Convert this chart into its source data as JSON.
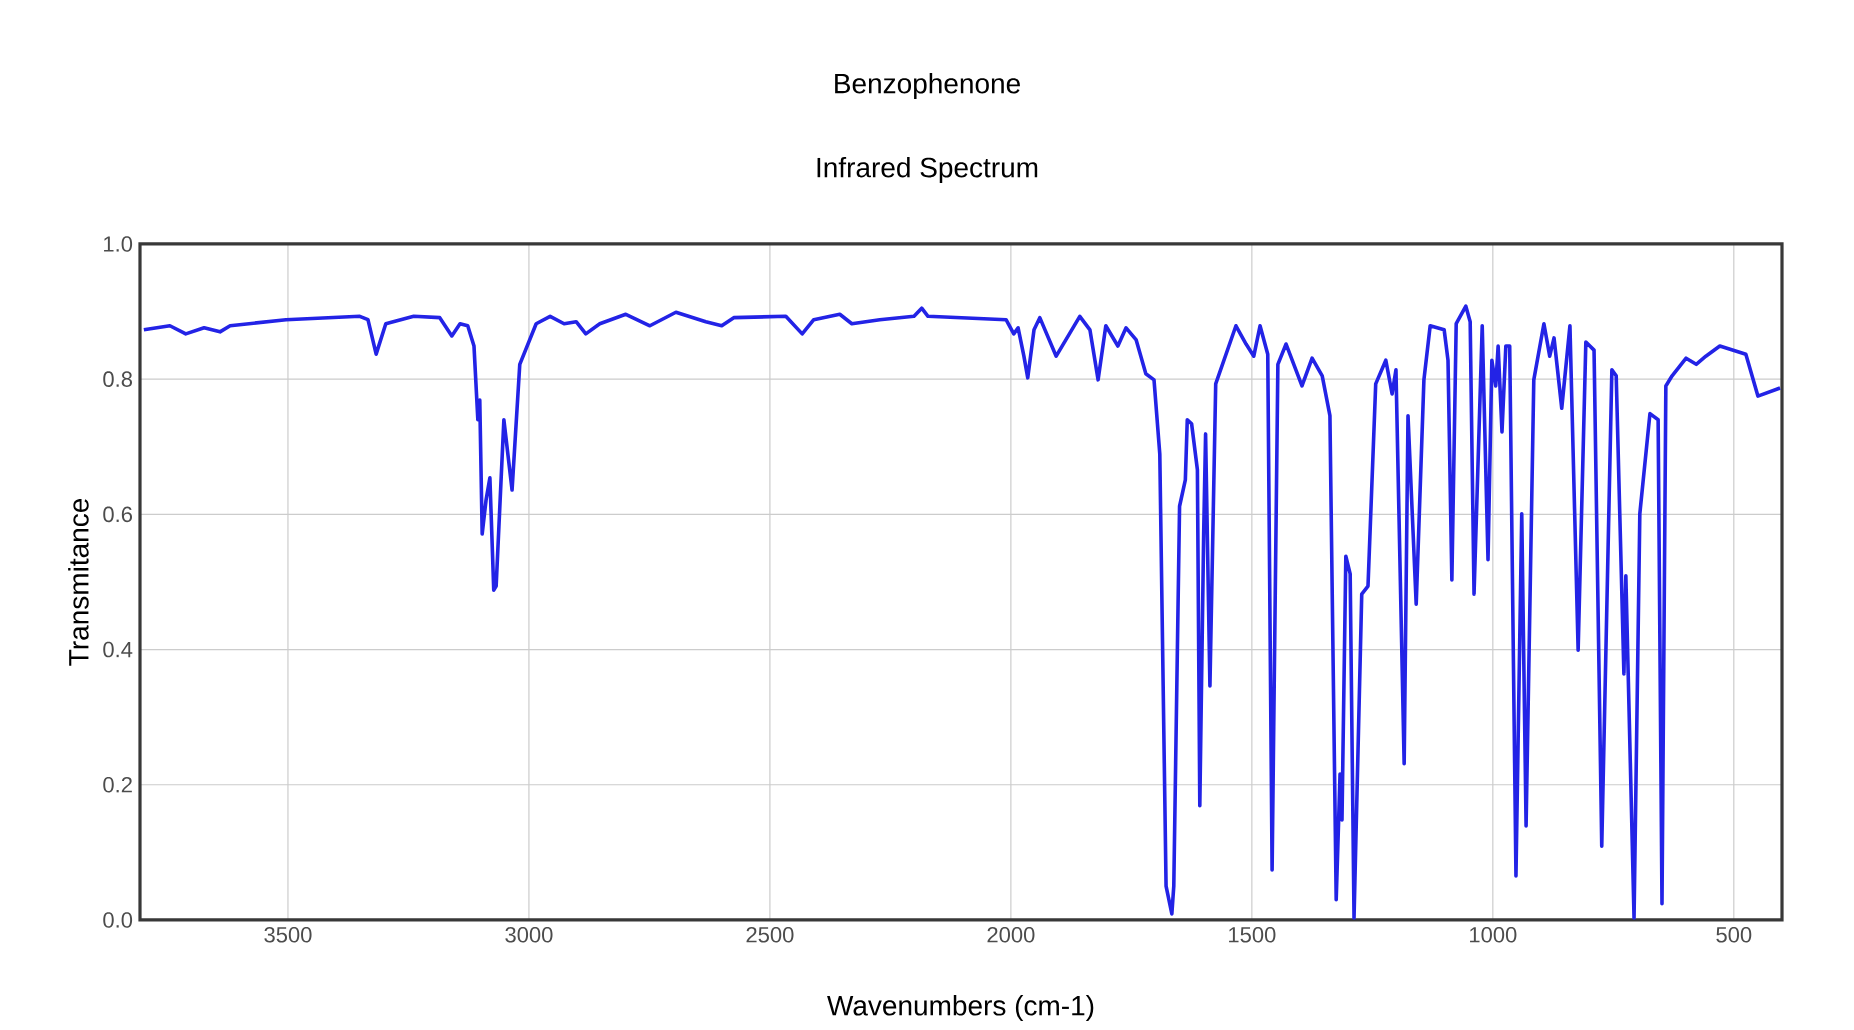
{
  "chart_data": {
    "type": "line",
    "title": "Benzophenone",
    "subtitle": "Infrared Spectrum",
    "xlabel": "Wavenumbers (cm-1)",
    "ylabel": "Transmitance",
    "xlim": [
      3807,
      400
    ],
    "ylim": [
      0,
      1
    ],
    "xticks": [
      3500,
      3000,
      2500,
      2000,
      1500,
      1000,
      500
    ],
    "yticks": [
      {
        "value": 0,
        "label": "0.0"
      },
      0.2,
      0.4,
      0.6,
      0.8,
      {
        "value": 1,
        "label": "1.0"
      }
    ],
    "grid": true,
    "marker": "none",
    "line_style": "solid",
    "series": [
      {
        "color": "#2323e6",
        "x": [
          3799,
          3745,
          3712,
          3674,
          3641,
          3620,
          3504,
          3351,
          3334,
          3317,
          3297,
          3239,
          3185,
          3160,
          3143,
          3127,
          3114,
          3106,
          3102,
          3097,
          3089,
          3081,
          3073,
          3068,
          3052,
          3035,
          3019,
          2985,
          2956,
          2927,
          2902,
          2882,
          2853,
          2799,
          2749,
          2695,
          2633,
          2600,
          2575,
          2467,
          2433,
          2409,
          2355,
          2330,
          2272,
          2201,
          2185,
          2172,
          2010,
          1994,
          1985,
          1973,
          1965,
          1952,
          1940,
          1906,
          1857,
          1836,
          1819,
          1803,
          1778,
          1761,
          1740,
          1720,
          1703,
          1691,
          1678,
          1666,
          1662,
          1650,
          1638,
          1634,
          1625,
          1613,
          1608,
          1600,
          1596,
          1587,
          1575,
          1533,
          1512,
          1496,
          1483,
          1467,
          1458,
          1446,
          1429,
          1396,
          1375,
          1354,
          1338,
          1325,
          1317,
          1313,
          1305,
          1296,
          1288,
          1272,
          1259,
          1243,
          1222,
          1209,
          1201,
          1184,
          1176,
          1159,
          1143,
          1130,
          1101,
          1093,
          1085,
          1076,
          1056,
          1047,
          1039,
          1022,
          1010,
          1002,
          994,
          989,
          981,
          973,
          965,
          952,
          940,
          931,
          915,
          894,
          882,
          873,
          857,
          840,
          823,
          807,
          790,
          774,
          753,
          744,
          728,
          724,
          707,
          695,
          674,
          657,
          649,
          641,
          628,
          599,
          578,
          558,
          529,
          475,
          450,
          404
        ],
        "values": [
          0.873,
          0.879,
          0.867,
          0.876,
          0.87,
          0.879,
          0.888,
          0.893,
          0.888,
          0.837,
          0.882,
          0.893,
          0.891,
          0.864,
          0.882,
          0.879,
          0.849,
          0.74,
          0.769,
          0.571,
          0.621,
          0.654,
          0.488,
          0.494,
          0.74,
          0.636,
          0.822,
          0.882,
          0.893,
          0.882,
          0.885,
          0.867,
          0.882,
          0.896,
          0.879,
          0.899,
          0.885,
          0.879,
          0.891,
          0.893,
          0.867,
          0.888,
          0.896,
          0.882,
          0.888,
          0.893,
          0.905,
          0.893,
          0.888,
          0.867,
          0.876,
          0.834,
          0.802,
          0.873,
          0.891,
          0.834,
          0.893,
          0.873,
          0.799,
          0.879,
          0.849,
          0.876,
          0.858,
          0.808,
          0.799,
          0.689,
          0.05,
          0.009,
          0.05,
          0.612,
          0.651,
          0.74,
          0.734,
          0.666,
          0.169,
          0.571,
          0.719,
          0.346,
          0.793,
          0.879,
          0.852,
          0.834,
          0.879,
          0.837,
          0.074,
          0.822,
          0.852,
          0.79,
          0.831,
          0.805,
          0.746,
          0.03,
          0.216,
          0.148,
          0.538,
          0.512,
          0.003,
          0.482,
          0.494,
          0.793,
          0.828,
          0.778,
          0.814,
          0.231,
          0.746,
          0.467,
          0.799,
          0.879,
          0.873,
          0.828,
          0.503,
          0.882,
          0.908,
          0.885,
          0.482,
          0.879,
          0.533,
          0.828,
          0.79,
          0.849,
          0.722,
          0.849,
          0.849,
          0.065,
          0.601,
          0.139,
          0.799,
          0.882,
          0.834,
          0.861,
          0.757,
          0.879,
          0.399,
          0.855,
          0.843,
          0.109,
          0.814,
          0.805,
          0.364,
          0.509,
          0.003,
          0.601,
          0.749,
          0.74,
          0.024,
          0.79,
          0.805,
          0.831,
          0.822,
          0.834,
          0.849,
          0.837,
          0.775,
          0.787
        ]
      }
    ]
  }
}
